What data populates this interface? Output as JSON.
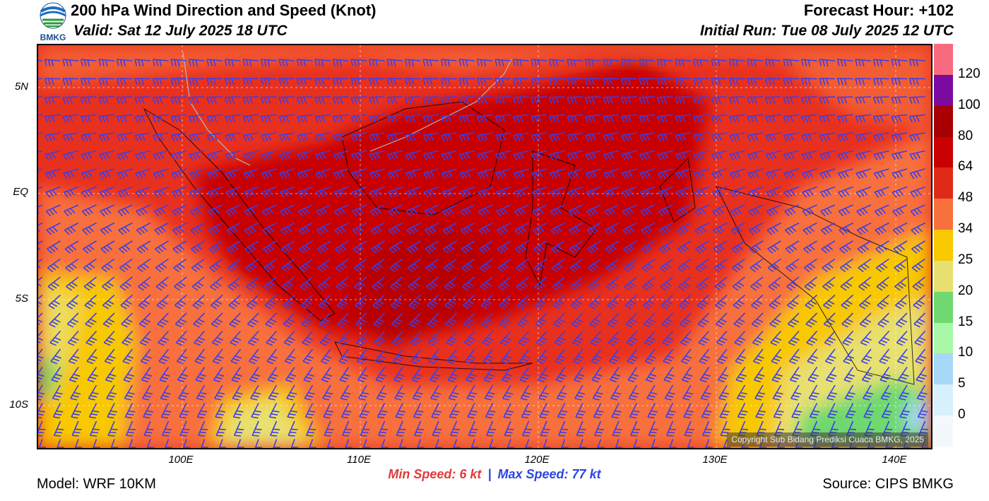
{
  "header": {
    "title": "200 hPa Wind Direction and Speed (Knot)",
    "valid": "Valid: Sat 12 July 2025 18 UTC",
    "forecast_hour": "Forecast Hour: +102",
    "initial_run": "Initial Run: Tue 08 July 2025 12 UTC",
    "logo_text": "BMKG"
  },
  "map": {
    "lat_labels": [
      "5N",
      "EQ",
      "5S",
      "10S"
    ],
    "lon_labels": [
      "100E",
      "110E",
      "120E",
      "130E",
      "140E"
    ],
    "copyright": "Copyright Sub Bidang Prediksi Cuaca BMKG, 2025"
  },
  "colorbar": {
    "labels": [
      "120",
      "100",
      "80",
      "64",
      "48",
      "34",
      "25",
      "20",
      "15",
      "10",
      "5",
      "0"
    ],
    "colors": [
      "#f86a80",
      "#7a0aa0",
      "#a80000",
      "#c80000",
      "#e02a18",
      "#f8703c",
      "#f8c800",
      "#e8e070",
      "#70d870",
      "#a8f8a8",
      "#a8d8f8",
      "#d8f0fc",
      "#f4f8fc"
    ]
  },
  "footer": {
    "min_speed": "Min Speed:   6 kt",
    "separator": "|",
    "max_speed": "Max Speed:  77 kt",
    "model": "Model: WRF 10KM",
    "source": "Source: CIPS BMKG"
  }
}
